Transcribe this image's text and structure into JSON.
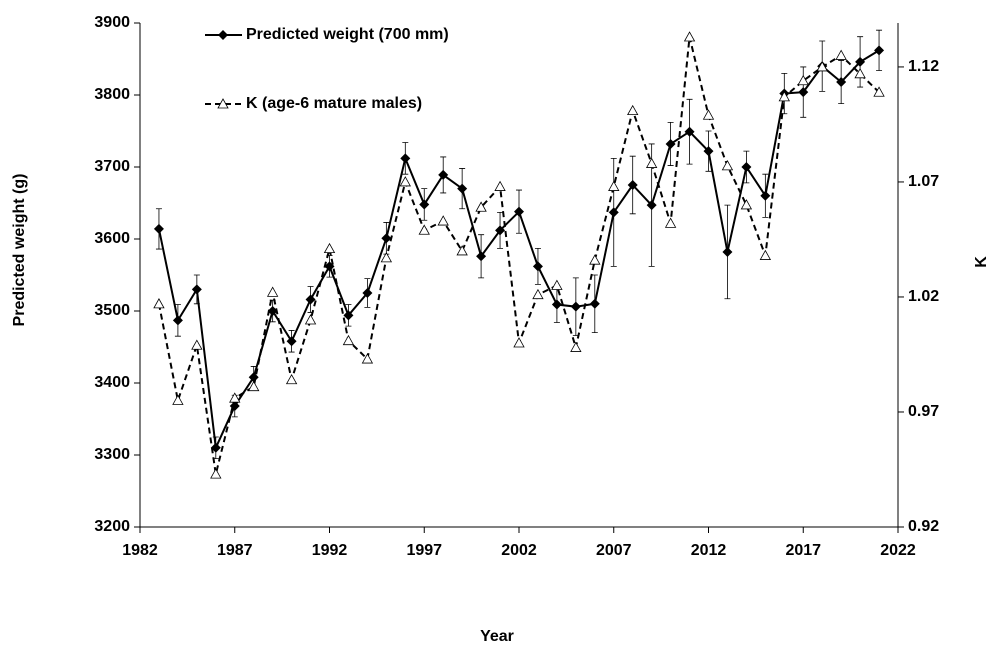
{
  "chart_data": {
    "type": "line",
    "x": [
      1983,
      1984,
      1985,
      1986,
      1987,
      1988,
      1989,
      1990,
      1991,
      1992,
      1993,
      1994,
      1995,
      1996,
      1997,
      1998,
      1999,
      2000,
      2001,
      2002,
      2003,
      2004,
      2005,
      2006,
      2007,
      2008,
      2009,
      2010,
      2011,
      2012,
      2013,
      2014,
      2015,
      2016,
      2017,
      2018,
      2019,
      2020,
      2021
    ],
    "series": [
      {
        "name": "Predicted weight (700 mm)",
        "color": "#000000",
        "line_style": "solid",
        "marker": "diamond",
        "values": [
          3614,
          3487,
          3530,
          3310,
          3368,
          3408,
          3500,
          3458,
          3516,
          3562,
          3494,
          3525,
          3601,
          3712,
          3648,
          3689,
          3670,
          3576,
          3612,
          3638,
          3562,
          3509,
          3506,
          3510,
          3637,
          3675,
          3647,
          3732,
          3749,
          3722,
          3582,
          3700,
          3660,
          3802,
          3804,
          3840,
          3818,
          3846,
          3862
        ],
        "errors": [
          28,
          22,
          20,
          15,
          15,
          15,
          15,
          15,
          18,
          15,
          15,
          20,
          22,
          22,
          22,
          25,
          28,
          30,
          25,
          30,
          25,
          25,
          40,
          40,
          75,
          40,
          85,
          30,
          45,
          28,
          65,
          22,
          30,
          28,
          35,
          35,
          30,
          35,
          28
        ]
      },
      {
        "name": "K (age-6 mature males)",
        "color": "#000000",
        "line_style": "dashed",
        "marker": "triangle-open",
        "axis": "y2",
        "values": [
          1.017,
          0.975,
          0.999,
          0.943,
          0.976,
          0.981,
          1.022,
          0.984,
          1.01,
          1.041,
          1.001,
          0.993,
          1.037,
          1.07,
          1.049,
          1.053,
          1.04,
          1.059,
          1.068,
          1.0,
          1.021,
          1.025,
          0.998,
          1.036,
          1.068,
          1.101,
          1.078,
          1.052,
          1.133,
          1.099,
          1.077,
          1.06,
          1.038,
          1.107,
          1.114,
          1.12,
          1.125,
          1.117,
          1.109
        ]
      }
    ],
    "xlabel": "Year",
    "ylabel": "Predicted weight (g)",
    "y2label": "K",
    "xlim": [
      1982,
      2022
    ],
    "xticks": [
      1982,
      1987,
      1992,
      1997,
      2002,
      2007,
      2012,
      2017,
      2022
    ],
    "ylim": [
      3200,
      3900
    ],
    "yticks": [
      3200,
      3300,
      3400,
      3500,
      3600,
      3700,
      3800,
      3900
    ],
    "y2lim": [
      0.92,
      1.1391
    ],
    "y2ticks": [
      {
        "value": 0.92,
        "label": "0.92"
      },
      {
        "value": 0.97,
        "label": "0.97"
      },
      {
        "value": 1.02,
        "label": "1.02"
      },
      {
        "value": 1.07,
        "label": "1.07"
      },
      {
        "value": 1.12,
        "label": "1.12"
      }
    ],
    "grid": false
  }
}
